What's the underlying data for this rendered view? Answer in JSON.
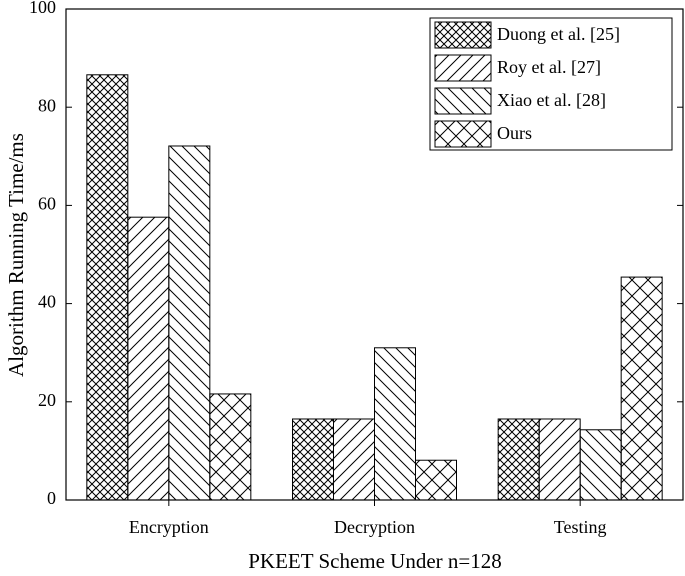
{
  "chart_data": {
    "type": "bar",
    "x_label": "PKEET Scheme Under n=128",
    "y_label": "Algorithm Running Time/ms",
    "categories": [
      "Encryption",
      "Decryption",
      "Testing"
    ],
    "series": [
      {
        "name": "Duong et al. [25]",
        "pattern": "dense-crosshatch",
        "values": [
          86.6,
          16.5,
          16.5
        ]
      },
      {
        "name": "Roy et al. [27]",
        "pattern": "forward-diagonal",
        "values": [
          57.6,
          16.5,
          16.5
        ]
      },
      {
        "name": "Xiao et al. [28]",
        "pattern": "backward-diagonal",
        "values": [
          72.1,
          31.0,
          14.3
        ]
      },
      {
        "name": "Ours",
        "pattern": "crosshatch",
        "values": [
          21.6,
          8.1,
          45.4
        ]
      }
    ],
    "ylim": [
      0,
      100
    ],
    "yticks": [
      0,
      20,
      40,
      60,
      80,
      100
    ],
    "grid": false,
    "legend": "upper right"
  }
}
